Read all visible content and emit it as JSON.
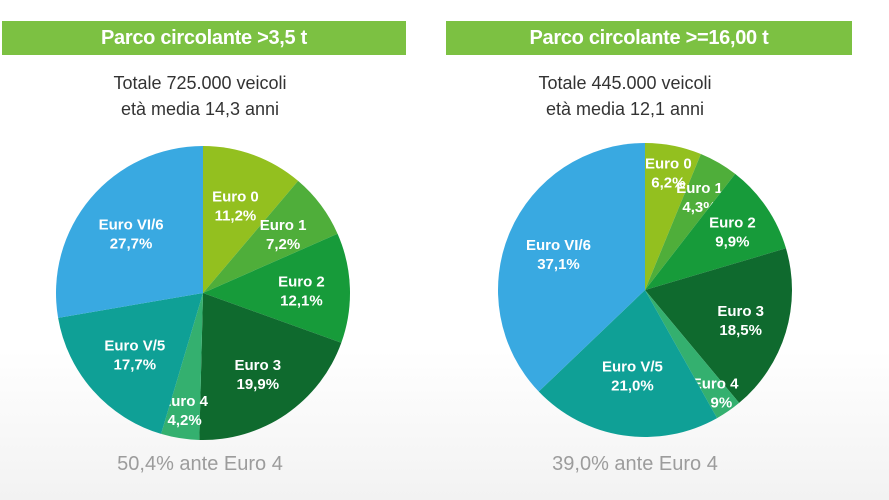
{
  "chart_data": [
    {
      "type": "pie",
      "title": "Parco circolante >3,5 t",
      "subtitle_lines": [
        "Totale 725.000 veicoli",
        "età media 14,3 anni"
      ],
      "slices": [
        {
          "label": "Euro 0",
          "value": 11.2,
          "display": "11,2%",
          "color": "#93c01f"
        },
        {
          "label": "Euro 1",
          "value": 7.2,
          "display": "7,2%",
          "color": "#4fae3a"
        },
        {
          "label": "Euro 2",
          "value": 12.1,
          "display": "12,1%",
          "color": "#179b3a"
        },
        {
          "label": "Euro 3",
          "value": 19.9,
          "display": "19,9%",
          "color": "#0f6a2e"
        },
        {
          "label": "Euro 4",
          "value": 4.2,
          "display": "4,2%",
          "color": "#34b06f"
        },
        {
          "label": "Euro V/5",
          "value": 17.7,
          "display": "17,7%",
          "color": "#0fa096"
        },
        {
          "label": "Euro VI/6",
          "value": 27.7,
          "display": "27,7%",
          "color": "#39a9e1"
        }
      ],
      "footer": "50,4% ante Euro 4"
    },
    {
      "type": "pie",
      "title": "Parco circolante >=16,00 t",
      "subtitle_lines": [
        "Totale 445.000 veicoli",
        "età media 12,1 anni"
      ],
      "slices": [
        {
          "label": "Euro 0",
          "value": 6.2,
          "display": "6,2%",
          "color": "#93c01f"
        },
        {
          "label": "Euro 1",
          "value": 4.3,
          "display": "4,3%",
          "color": "#4fae3a"
        },
        {
          "label": "Euro 2",
          "value": 9.9,
          "display": "9,9%",
          "color": "#179b3a"
        },
        {
          "label": "Euro 3",
          "value": 18.5,
          "display": "18,5%",
          "color": "#0f6a2e"
        },
        {
          "label": "Euro 4",
          "value": 2.9,
          "display": "2,9%",
          "color": "#34b06f"
        },
        {
          "label": "Euro V/5",
          "value": 21.0,
          "display": "21,0%",
          "color": "#0fa096"
        },
        {
          "label": "Euro VI/6",
          "value": 37.1,
          "display": "37,1%",
          "color": "#39a9e1"
        }
      ],
      "footer": "39,0% ante Euro 4"
    }
  ]
}
